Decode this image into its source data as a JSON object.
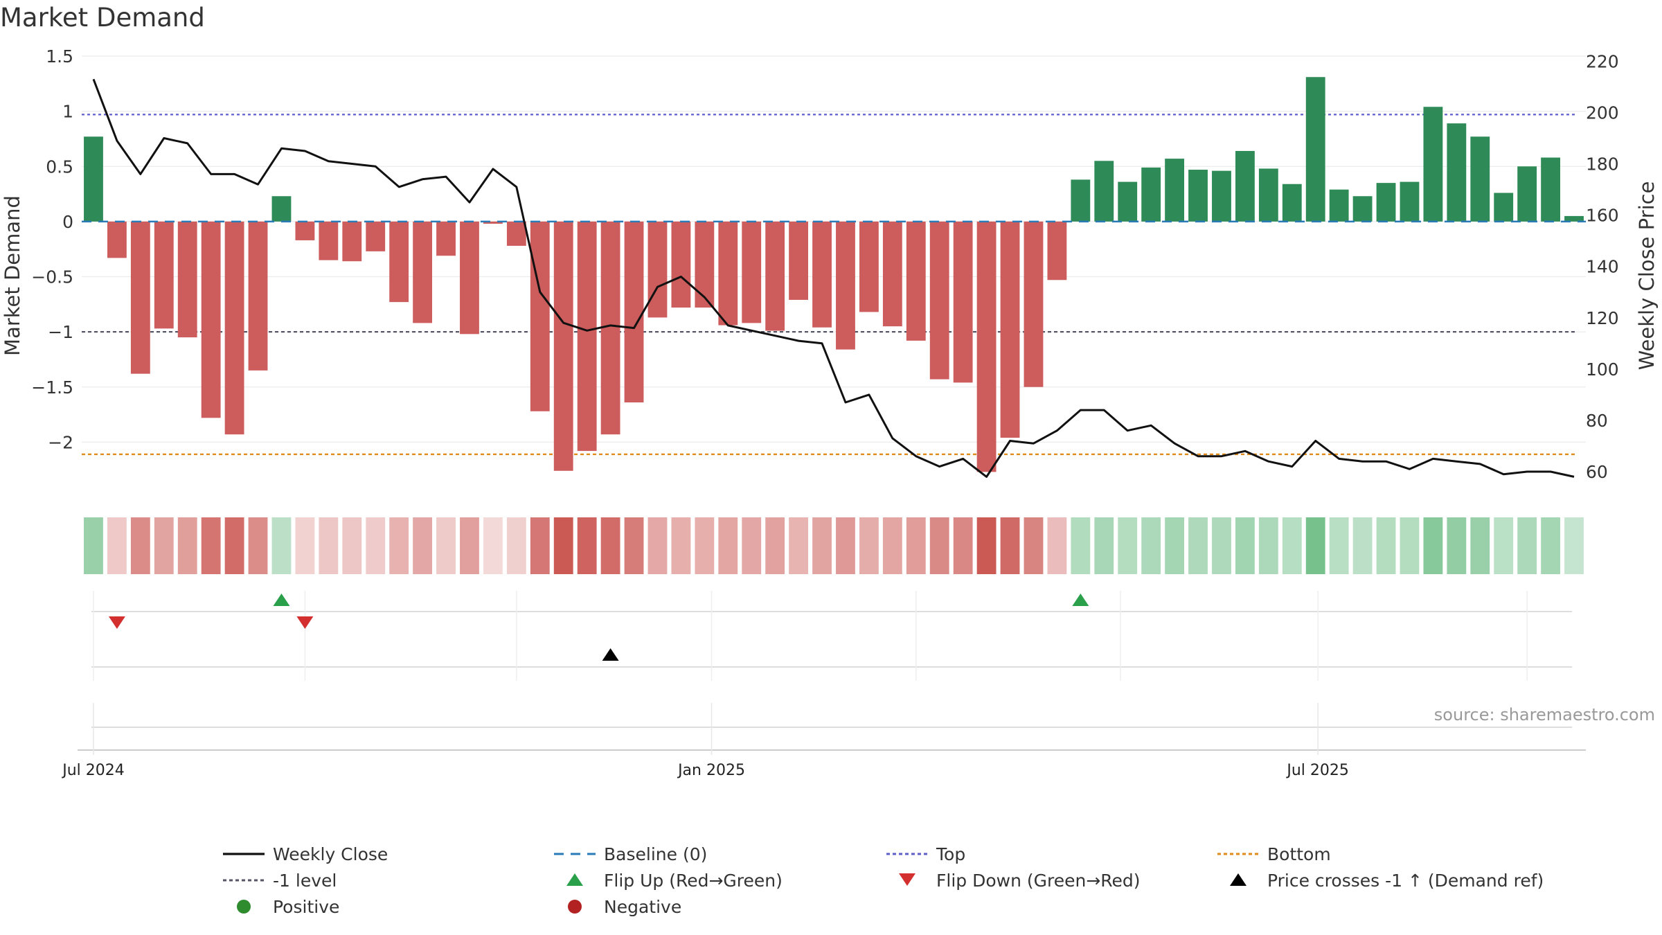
{
  "chart_data": {
    "type": "bar",
    "title": "Market Demand",
    "ylabel": "Market Demand",
    "y2label": "Weekly Close Price",
    "ylim": [
      -2.5,
      1.5
    ],
    "y2lim": [
      50,
      222
    ],
    "yticks": [
      {
        "v": 1.5,
        "label": "1.5"
      },
      {
        "v": 1,
        "label": "1"
      },
      {
        "v": 0.5,
        "label": "0.5"
      },
      {
        "v": 0,
        "label": "0"
      },
      {
        "v": -0.5,
        "label": "−0.5"
      },
      {
        "v": -1,
        "label": "−1"
      },
      {
        "v": -1.5,
        "label": "−1.5"
      },
      {
        "v": -2,
        "label": "−2"
      }
    ],
    "y2ticks": [
      {
        "v": 220,
        "label": "220"
      },
      {
        "v": 200,
        "label": "200"
      },
      {
        "v": 180,
        "label": "180"
      },
      {
        "v": 160,
        "label": "160"
      },
      {
        "v": 140,
        "label": "140"
      },
      {
        "v": 120,
        "label": "120"
      },
      {
        "v": 100,
        "label": "100"
      },
      {
        "v": 80,
        "label": "80"
      },
      {
        "v": 60,
        "label": "60"
      }
    ],
    "xticks": [
      {
        "index": 0,
        "label": "Jul 2024"
      },
      {
        "index": 26.3,
        "label": "Jan 2025"
      },
      {
        "index": 52.1,
        "label": "Jul 2025"
      }
    ],
    "reference_lines": {
      "top": 0.97,
      "bottom": -2.11,
      "minus_one": -1,
      "baseline": 0
    },
    "series": [
      {
        "name": "Market Demand",
        "values": [
          0.77,
          -0.33,
          -1.38,
          -0.97,
          -1.05,
          -1.78,
          -1.93,
          -1.35,
          0.23,
          -0.17,
          -0.35,
          -0.36,
          -0.27,
          -0.73,
          -0.92,
          -0.31,
          -1.02,
          -0.02,
          -0.22,
          -1.72,
          -2.26,
          -2.08,
          -1.93,
          -1.64,
          -0.87,
          -0.78,
          -0.78,
          -0.94,
          -0.92,
          -0.99,
          -0.71,
          -0.96,
          -1.16,
          -0.82,
          -0.95,
          -1.08,
          -1.43,
          -1.46,
          -2.27,
          -1.96,
          -1.5,
          -0.53,
          0.38,
          0.55,
          0.36,
          0.49,
          0.57,
          0.47,
          0.46,
          0.64,
          0.48,
          0.34,
          1.31,
          0.29,
          0.23,
          0.35,
          0.36,
          1.04,
          0.89,
          0.77,
          0.26,
          0.5,
          0.58,
          0.05
        ]
      },
      {
        "name": "Weekly Close",
        "values": [
          213,
          189,
          176,
          190,
          188,
          176,
          176,
          172,
          186,
          185,
          181,
          180,
          179,
          171,
          174,
          175,
          165,
          178,
          171,
          130,
          118,
          115,
          117,
          116,
          132,
          136,
          128,
          117,
          115,
          113,
          111,
          110,
          87,
          90,
          73,
          66,
          62,
          65,
          58,
          72,
          71,
          76,
          84,
          84,
          76,
          78,
          71,
          66,
          66,
          68,
          64,
          62,
          72,
          65,
          64,
          64,
          61,
          65,
          64,
          63,
          59,
          60,
          60,
          58
        ]
      }
    ],
    "flip_up_indices": [
      8,
      42
    ],
    "flip_down_indices": [
      1,
      9
    ],
    "price_cross_indices": [
      22
    ],
    "source": "source: sharemaestro.com",
    "legend": [
      {
        "label": "Weekly Close",
        "symbol": "line",
        "color": "#111111"
      },
      {
        "label": "Baseline (0)",
        "symbol": "dash",
        "color": "#2a7ab8"
      },
      {
        "label": "Top",
        "symbol": "dot",
        "color": "#5e5ec8"
      },
      {
        "label": "Bottom",
        "symbol": "dot",
        "color": "#e08a1a"
      },
      {
        "label": "-1 level",
        "symbol": "dot",
        "color": "#555566"
      },
      {
        "label": "Flip Up (Red→Green)",
        "symbol": "tri-up",
        "color": "#2aa04a"
      },
      {
        "label": "Flip Down (Green→Red)",
        "symbol": "tri-down",
        "color": "#d32f2f"
      },
      {
        "label": "Price crosses -1 ↑ (Demand ref)",
        "symbol": "tri-up",
        "color": "#000000"
      },
      {
        "label": "Positive",
        "symbol": "circle",
        "color": "#2e8b2e"
      },
      {
        "label": "Negative",
        "symbol": "circle",
        "color": "#b22222"
      }
    ],
    "colors": {
      "positive": "#2e8b57",
      "negative": "#cd5c5c",
      "price": "#111111"
    },
    "grid": true
  }
}
